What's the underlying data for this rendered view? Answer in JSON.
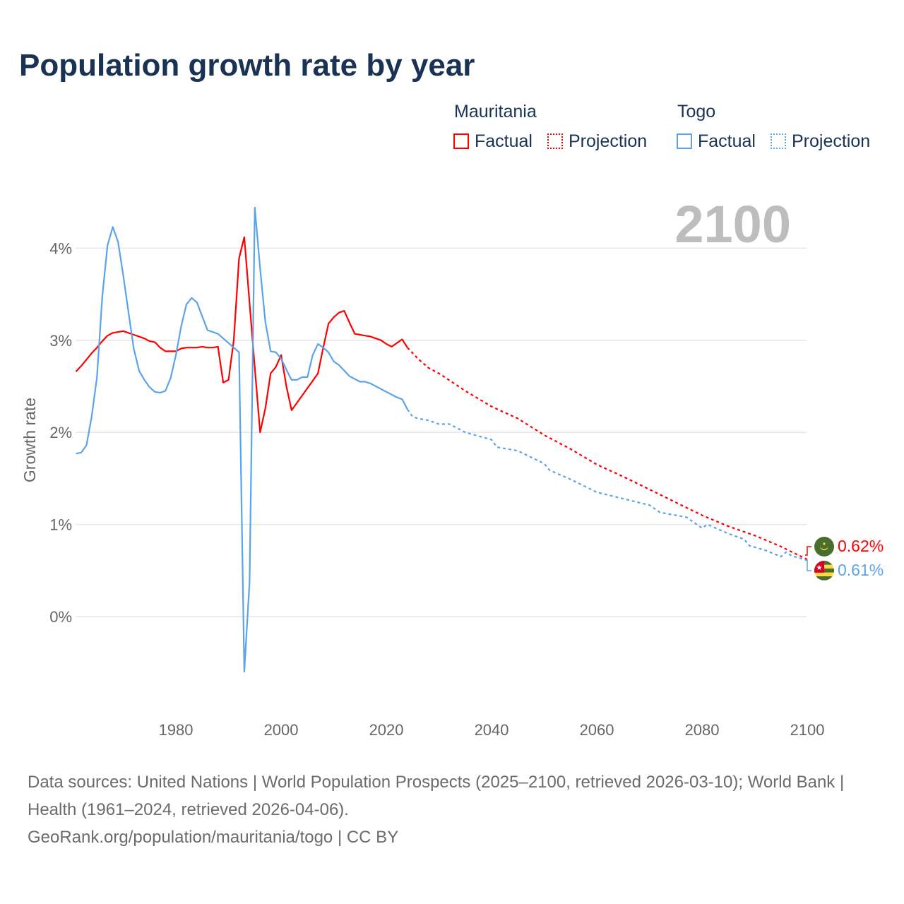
{
  "title": "Population growth rate by year",
  "legend": {
    "groups": [
      {
        "name": "Mauritania",
        "factual": "Factual",
        "projection": "Projection",
        "color": "#ff0000"
      },
      {
        "name": "Togo",
        "factual": "Factual",
        "projection": "Projection",
        "color": "#5ba3ea"
      }
    ]
  },
  "year_label": "2100",
  "end_labels": {
    "mauritania": "0.62%",
    "togo": "0.61%"
  },
  "footer": {
    "line1": "Data sources: United Nations | World Population Prospects (2025–2100, retrieved 2026-03-10); World Bank | Health (1961–2024, retrieved 2026-04-06).",
    "line2": "GeoRank.org/population/mauritania/togo | CC BY"
  },
  "chart_data": {
    "type": "line",
    "title": "Population growth rate by year",
    "xlabel": "",
    "ylabel": "Growth rate",
    "xlim": [
      1961,
      2100
    ],
    "ylim": [
      -0.9,
      4.6
    ],
    "xticks": [
      1980,
      2000,
      2020,
      2040,
      2060,
      2080,
      2100
    ],
    "xtick_labels": [
      "1980",
      "2000",
      "2020",
      "2040",
      "2060",
      "2080",
      "2100"
    ],
    "yticks": [
      0,
      1,
      2,
      3,
      4
    ],
    "ytick_labels": [
      "0%",
      "1%",
      "2%",
      "3%",
      "4%"
    ],
    "grid": true,
    "legend_position": "top-right",
    "series": [
      {
        "name": "Mauritania Factual",
        "color": "#ff0000",
        "style": "solid",
        "x": [
          1961,
          1962,
          1963,
          1964,
          1965,
          1966,
          1967,
          1968,
          1969,
          1970,
          1971,
          1972,
          1973,
          1974,
          1975,
          1976,
          1977,
          1978,
          1979,
          1980,
          1981,
          1982,
          1983,
          1984,
          1985,
          1986,
          1987,
          1988,
          1989,
          1990,
          1991,
          1992,
          1993,
          1994,
          1995,
          1996,
          1997,
          1998,
          1999,
          2000,
          2001,
          2002,
          2003,
          2004,
          2005,
          2006,
          2007,
          2008,
          2009,
          2010,
          2011,
          2012,
          2013,
          2014,
          2015,
          2016,
          2017,
          2018,
          2019,
          2020,
          2021,
          2022,
          2023,
          2024
        ],
        "values": [
          2.66,
          2.72,
          2.79,
          2.86,
          2.92,
          2.99,
          3.05,
          3.08,
          3.09,
          3.1,
          3.08,
          3.06,
          3.04,
          3.02,
          2.99,
          2.98,
          2.92,
          2.88,
          2.88,
          2.88,
          2.91,
          2.92,
          2.92,
          2.92,
          2.93,
          2.92,
          2.92,
          2.93,
          2.54,
          2.57,
          3.0,
          3.89,
          4.12,
          3.4,
          2.7,
          2.0,
          2.26,
          2.64,
          2.71,
          2.84,
          2.5,
          2.24,
          2.32,
          2.4,
          2.48,
          2.56,
          2.64,
          2.92,
          3.18,
          3.25,
          3.3,
          3.32,
          3.19,
          3.07,
          3.06,
          3.05,
          3.04,
          3.02,
          3.0,
          2.96,
          2.93,
          2.97,
          3.01,
          2.92
        ]
      },
      {
        "name": "Mauritania Projection",
        "color": "#ff0000",
        "style": "dotted",
        "x": [
          2024,
          2026,
          2028,
          2030,
          2035,
          2040,
          2045,
          2050,
          2055,
          2060,
          2065,
          2070,
          2075,
          2080,
          2085,
          2090,
          2095,
          2100
        ],
        "values": [
          2.92,
          2.8,
          2.7,
          2.64,
          2.45,
          2.28,
          2.15,
          1.97,
          1.82,
          1.65,
          1.52,
          1.38,
          1.24,
          1.1,
          0.98,
          0.88,
          0.76,
          0.62
        ]
      },
      {
        "name": "Togo Factual",
        "color": "#5ba3ea",
        "style": "solid",
        "x": [
          1961,
          1962,
          1963,
          1964,
          1965,
          1966,
          1967,
          1968,
          1969,
          1970,
          1971,
          1972,
          1973,
          1974,
          1975,
          1976,
          1977,
          1978,
          1979,
          1980,
          1981,
          1982,
          1983,
          1984,
          1985,
          1986,
          1987,
          1988,
          1989,
          1990,
          1991,
          1992,
          1993,
          1994,
          1995,
          1996,
          1997,
          1998,
          1999,
          2000,
          2001,
          2002,
          2003,
          2004,
          2005,
          2006,
          2007,
          2008,
          2009,
          2010,
          2011,
          2012,
          2013,
          2014,
          2015,
          2016,
          2017,
          2018,
          2019,
          2020,
          2021,
          2022,
          2023,
          2024
        ],
        "values": [
          1.77,
          1.78,
          1.86,
          2.17,
          2.6,
          3.47,
          4.03,
          4.23,
          4.07,
          3.7,
          3.3,
          2.91,
          2.67,
          2.57,
          2.49,
          2.44,
          2.43,
          2.45,
          2.59,
          2.84,
          3.15,
          3.39,
          3.46,
          3.41,
          3.26,
          3.11,
          3.09,
          3.07,
          3.02,
          2.97,
          2.92,
          2.87,
          -0.6,
          0.38,
          4.44,
          3.78,
          3.2,
          2.88,
          2.87,
          2.8,
          2.68,
          2.57,
          2.57,
          2.6,
          2.6,
          2.84,
          2.96,
          2.92,
          2.87,
          2.77,
          2.73,
          2.67,
          2.61,
          2.58,
          2.55,
          2.55,
          2.53,
          2.5,
          2.47,
          2.44,
          2.41,
          2.38,
          2.36,
          2.25
        ]
      },
      {
        "name": "Togo Projection",
        "color": "#5ba3ea",
        "style": "dotted",
        "x": [
          2024,
          2025,
          2026,
          2028,
          2030,
          2032,
          2035,
          2040,
          2041,
          2045,
          2050,
          2051,
          2055,
          2060,
          2065,
          2070,
          2072,
          2075,
          2077,
          2080,
          2081,
          2085,
          2088,
          2089,
          2092,
          2095,
          2096,
          2097,
          2100
        ],
        "values": [
          2.25,
          2.17,
          2.15,
          2.13,
          2.09,
          2.09,
          2.0,
          1.92,
          1.84,
          1.8,
          1.66,
          1.59,
          1.49,
          1.35,
          1.28,
          1.21,
          1.13,
          1.1,
          1.08,
          0.96,
          1.0,
          0.9,
          0.84,
          0.77,
          0.72,
          0.65,
          0.7,
          0.66,
          0.61
        ]
      }
    ]
  }
}
